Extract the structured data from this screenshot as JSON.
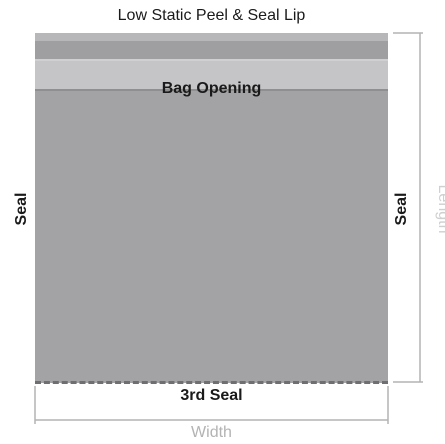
{
  "labels": {
    "lip": "Low Static Peel & Seal Lip",
    "opening": "Bag Opening",
    "left_seal": "Seal",
    "right_seal": "Seal",
    "bottom_seal": "3rd Seal",
    "length": "Length",
    "width": "Width"
  },
  "colors": {
    "bag_body": "#a3a3a5",
    "opening_band": "#c5c5c7",
    "dimension_line": "#b3b3b3",
    "text": "#1a1a1a"
  }
}
